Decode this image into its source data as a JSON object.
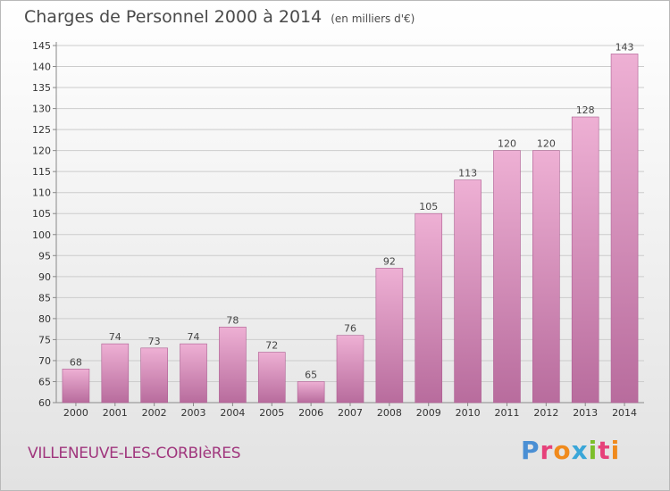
{
  "header": {
    "title": "Charges de Personnel 2000 à 2014",
    "unit": "(en milliers d'€)"
  },
  "footer": {
    "town": "VILLENEUVE-LES-CORBIèRES",
    "logo": {
      "text": "Proxiti",
      "colors": [
        "#4a8fd4",
        "#e6417a",
        "#f08a1c",
        "#3aa6d8",
        "#7cbf2a",
        "#e6417a",
        "#f08a1c"
      ]
    }
  },
  "colors": {
    "bar_light": "#eeb0d4",
    "bar_dark": "#b86c9d",
    "bar_edge": "#ad5e92",
    "grid": "#cccccc"
  },
  "chart_data": {
    "type": "bar",
    "title": "Charges de Personnel 2000 à 2014",
    "subtitle": "(en milliers d'€)",
    "categories": [
      "2000",
      "2001",
      "2002",
      "2003",
      "2004",
      "2005",
      "2006",
      "2007",
      "2008",
      "2009",
      "2010",
      "2011",
      "2012",
      "2013",
      "2014"
    ],
    "values": [
      68,
      74,
      73,
      74,
      78,
      72,
      65,
      76,
      92,
      105,
      113,
      120,
      120,
      128,
      143
    ],
    "ylim": [
      60,
      145
    ],
    "yticks": [
      60,
      65,
      70,
      75,
      80,
      85,
      90,
      95,
      100,
      105,
      110,
      115,
      120,
      125,
      130,
      135,
      140,
      145
    ],
    "grid": true,
    "xlabel": "",
    "ylabel": ""
  }
}
